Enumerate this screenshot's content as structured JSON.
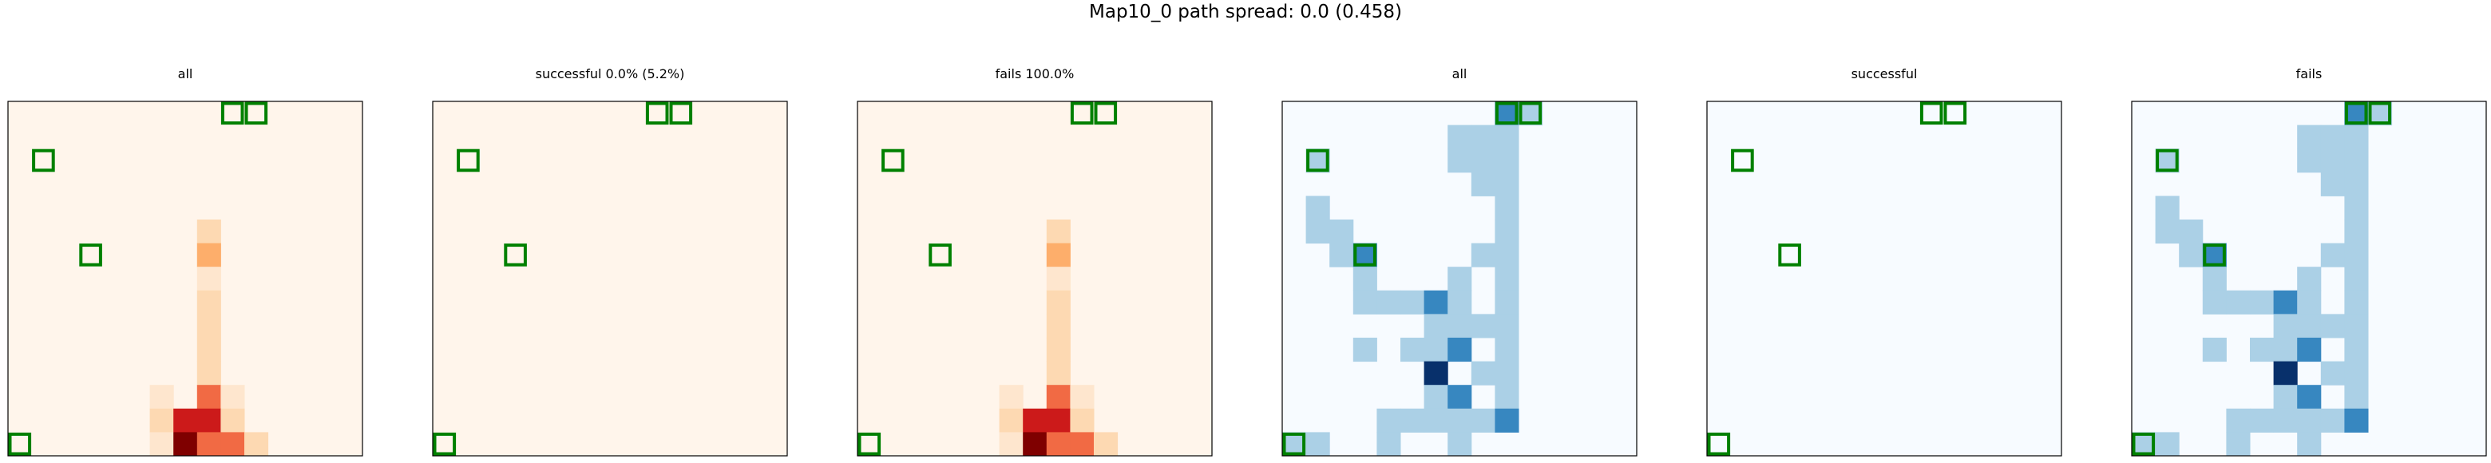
{
  "title": "Map10_0 path spread: 0.0 (0.458)",
  "colors": {
    "marker": "#008000",
    "frame": "#000000",
    "oranges": [
      "#fff5eb",
      "#fee6ce",
      "#fdd9b2",
      "#fdae6b",
      "#f16a44",
      "#cc1a1a",
      "#7f0000"
    ],
    "blues": [
      "#f7fbff",
      "#abd0e6",
      "#3787c0",
      "#08306b"
    ]
  },
  "chart_data": [
    {
      "type": "heatmap",
      "title": "all",
      "colormap": "oranges",
      "rows": 15,
      "cols": 15,
      "cells": [
        {
          "row": 5,
          "col": 8,
          "level": 2
        },
        {
          "row": 6,
          "col": 8,
          "level": 3
        },
        {
          "row": 7,
          "col": 8,
          "level": 1
        },
        {
          "row": 8,
          "col": 8,
          "level": 2
        },
        {
          "row": 9,
          "col": 8,
          "level": 2
        },
        {
          "row": 10,
          "col": 8,
          "level": 2
        },
        {
          "row": 11,
          "col": 8,
          "level": 2
        },
        {
          "row": 12,
          "col": 6,
          "level": 1
        },
        {
          "row": 12,
          "col": 8,
          "level": 4
        },
        {
          "row": 12,
          "col": 9,
          "level": 1
        },
        {
          "row": 13,
          "col": 6,
          "level": 2
        },
        {
          "row": 13,
          "col": 7,
          "level": 5
        },
        {
          "row": 13,
          "col": 8,
          "level": 5
        },
        {
          "row": 13,
          "col": 9,
          "level": 2
        },
        {
          "row": 14,
          "col": 6,
          "level": 1
        },
        {
          "row": 14,
          "col": 7,
          "level": 6
        },
        {
          "row": 14,
          "col": 8,
          "level": 4
        },
        {
          "row": 14,
          "col": 9,
          "level": 4
        },
        {
          "row": 14,
          "col": 10,
          "level": 2
        }
      ],
      "markers": [
        [
          0,
          9
        ],
        [
          0,
          10
        ],
        [
          2,
          1
        ],
        [
          6,
          3
        ],
        [
          14,
          0
        ]
      ]
    },
    {
      "type": "heatmap",
      "title": "successful 0.0% (5.2%)",
      "colormap": "oranges",
      "rows": 15,
      "cols": 15,
      "cells": [],
      "markers": [
        [
          0,
          9
        ],
        [
          0,
          10
        ],
        [
          2,
          1
        ],
        [
          6,
          3
        ],
        [
          14,
          0
        ]
      ]
    },
    {
      "type": "heatmap",
      "title": "fails 100.0%",
      "colormap": "oranges",
      "rows": 15,
      "cols": 15,
      "cells": [
        {
          "row": 5,
          "col": 8,
          "level": 2
        },
        {
          "row": 6,
          "col": 8,
          "level": 3
        },
        {
          "row": 7,
          "col": 8,
          "level": 1
        },
        {
          "row": 8,
          "col": 8,
          "level": 2
        },
        {
          "row": 9,
          "col": 8,
          "level": 2
        },
        {
          "row": 10,
          "col": 8,
          "level": 2
        },
        {
          "row": 11,
          "col": 8,
          "level": 2
        },
        {
          "row": 12,
          "col": 6,
          "level": 1
        },
        {
          "row": 12,
          "col": 8,
          "level": 4
        },
        {
          "row": 12,
          "col": 9,
          "level": 1
        },
        {
          "row": 13,
          "col": 6,
          "level": 2
        },
        {
          "row": 13,
          "col": 7,
          "level": 5
        },
        {
          "row": 13,
          "col": 8,
          "level": 5
        },
        {
          "row": 13,
          "col": 9,
          "level": 2
        },
        {
          "row": 14,
          "col": 6,
          "level": 1
        },
        {
          "row": 14,
          "col": 7,
          "level": 6
        },
        {
          "row": 14,
          "col": 8,
          "level": 4
        },
        {
          "row": 14,
          "col": 9,
          "level": 4
        },
        {
          "row": 14,
          "col": 10,
          "level": 2
        }
      ],
      "markers": [
        [
          0,
          9
        ],
        [
          0,
          10
        ],
        [
          2,
          1
        ],
        [
          6,
          3
        ],
        [
          14,
          0
        ]
      ]
    },
    {
      "type": "heatmap",
      "title": "all",
      "colormap": "blues",
      "rows": 15,
      "cols": 15,
      "cells": [
        {
          "row": 0,
          "col": 9,
          "level": 2
        },
        {
          "row": 0,
          "col": 10,
          "level": 1
        },
        {
          "row": 1,
          "col": 7,
          "level": 1
        },
        {
          "row": 1,
          "col": 8,
          "level": 1
        },
        {
          "row": 1,
          "col": 9,
          "level": 1
        },
        {
          "row": 2,
          "col": 1,
          "level": 1
        },
        {
          "row": 2,
          "col": 7,
          "level": 1
        },
        {
          "row": 2,
          "col": 8,
          "level": 1
        },
        {
          "row": 2,
          "col": 9,
          "level": 1
        },
        {
          "row": 3,
          "col": 8,
          "level": 1
        },
        {
          "row": 3,
          "col": 9,
          "level": 1
        },
        {
          "row": 4,
          "col": 1,
          "level": 1
        },
        {
          "row": 4,
          "col": 9,
          "level": 1
        },
        {
          "row": 5,
          "col": 1,
          "level": 1
        },
        {
          "row": 5,
          "col": 2,
          "level": 1
        },
        {
          "row": 5,
          "col": 9,
          "level": 1
        },
        {
          "row": 6,
          "col": 2,
          "level": 1
        },
        {
          "row": 6,
          "col": 3,
          "level": 2
        },
        {
          "row": 6,
          "col": 8,
          "level": 1
        },
        {
          "row": 6,
          "col": 9,
          "level": 1
        },
        {
          "row": 7,
          "col": 3,
          "level": 1
        },
        {
          "row": 7,
          "col": 7,
          "level": 1
        },
        {
          "row": 7,
          "col": 9,
          "level": 1
        },
        {
          "row": 8,
          "col": 3,
          "level": 1
        },
        {
          "row": 8,
          "col": 4,
          "level": 1
        },
        {
          "row": 8,
          "col": 5,
          "level": 1
        },
        {
          "row": 8,
          "col": 6,
          "level": 2
        },
        {
          "row": 8,
          "col": 7,
          "level": 1
        },
        {
          "row": 8,
          "col": 9,
          "level": 1
        },
        {
          "row": 9,
          "col": 6,
          "level": 1
        },
        {
          "row": 9,
          "col": 7,
          "level": 1
        },
        {
          "row": 9,
          "col": 8,
          "level": 1
        },
        {
          "row": 9,
          "col": 9,
          "level": 1
        },
        {
          "row": 10,
          "col": 3,
          "level": 1
        },
        {
          "row": 10,
          "col": 5,
          "level": 1
        },
        {
          "row": 10,
          "col": 6,
          "level": 1
        },
        {
          "row": 10,
          "col": 7,
          "level": 2
        },
        {
          "row": 10,
          "col": 9,
          "level": 1
        },
        {
          "row": 11,
          "col": 6,
          "level": 3
        },
        {
          "row": 11,
          "col": 8,
          "level": 1
        },
        {
          "row": 11,
          "col": 9,
          "level": 1
        },
        {
          "row": 12,
          "col": 6,
          "level": 1
        },
        {
          "row": 12,
          "col": 7,
          "level": 2
        },
        {
          "row": 12,
          "col": 9,
          "level": 1
        },
        {
          "row": 13,
          "col": 4,
          "level": 1
        },
        {
          "row": 13,
          "col": 5,
          "level": 1
        },
        {
          "row": 13,
          "col": 6,
          "level": 1
        },
        {
          "row": 13,
          "col": 7,
          "level": 1
        },
        {
          "row": 13,
          "col": 8,
          "level": 1
        },
        {
          "row": 13,
          "col": 9,
          "level": 2
        },
        {
          "row": 14,
          "col": 0,
          "level": 1
        },
        {
          "row": 14,
          "col": 1,
          "level": 1
        },
        {
          "row": 14,
          "col": 4,
          "level": 1
        },
        {
          "row": 14,
          "col": 7,
          "level": 1
        }
      ],
      "markers": [
        [
          0,
          9
        ],
        [
          0,
          10
        ],
        [
          2,
          1
        ],
        [
          6,
          3
        ],
        [
          14,
          0
        ]
      ]
    },
    {
      "type": "heatmap",
      "title": "successful",
      "colormap": "blues",
      "rows": 15,
      "cols": 15,
      "cells": [],
      "markers": [
        [
          0,
          9
        ],
        [
          0,
          10
        ],
        [
          2,
          1
        ],
        [
          6,
          3
        ],
        [
          14,
          0
        ]
      ]
    },
    {
      "type": "heatmap",
      "title": "fails",
      "colormap": "blues",
      "rows": 15,
      "cols": 15,
      "cells": [
        {
          "row": 0,
          "col": 9,
          "level": 2
        },
        {
          "row": 0,
          "col": 10,
          "level": 1
        },
        {
          "row": 1,
          "col": 7,
          "level": 1
        },
        {
          "row": 1,
          "col": 8,
          "level": 1
        },
        {
          "row": 1,
          "col": 9,
          "level": 1
        },
        {
          "row": 2,
          "col": 1,
          "level": 1
        },
        {
          "row": 2,
          "col": 7,
          "level": 1
        },
        {
          "row": 2,
          "col": 8,
          "level": 1
        },
        {
          "row": 2,
          "col": 9,
          "level": 1
        },
        {
          "row": 3,
          "col": 8,
          "level": 1
        },
        {
          "row": 3,
          "col": 9,
          "level": 1
        },
        {
          "row": 4,
          "col": 1,
          "level": 1
        },
        {
          "row": 4,
          "col": 9,
          "level": 1
        },
        {
          "row": 5,
          "col": 1,
          "level": 1
        },
        {
          "row": 5,
          "col": 2,
          "level": 1
        },
        {
          "row": 5,
          "col": 9,
          "level": 1
        },
        {
          "row": 6,
          "col": 2,
          "level": 1
        },
        {
          "row": 6,
          "col": 3,
          "level": 2
        },
        {
          "row": 6,
          "col": 8,
          "level": 1
        },
        {
          "row": 6,
          "col": 9,
          "level": 1
        },
        {
          "row": 7,
          "col": 3,
          "level": 1
        },
        {
          "row": 7,
          "col": 7,
          "level": 1
        },
        {
          "row": 7,
          "col": 9,
          "level": 1
        },
        {
          "row": 8,
          "col": 3,
          "level": 1
        },
        {
          "row": 8,
          "col": 4,
          "level": 1
        },
        {
          "row": 8,
          "col": 5,
          "level": 1
        },
        {
          "row": 8,
          "col": 6,
          "level": 2
        },
        {
          "row": 8,
          "col": 7,
          "level": 1
        },
        {
          "row": 8,
          "col": 9,
          "level": 1
        },
        {
          "row": 9,
          "col": 6,
          "level": 1
        },
        {
          "row": 9,
          "col": 7,
          "level": 1
        },
        {
          "row": 9,
          "col": 8,
          "level": 1
        },
        {
          "row": 9,
          "col": 9,
          "level": 1
        },
        {
          "row": 10,
          "col": 3,
          "level": 1
        },
        {
          "row": 10,
          "col": 5,
          "level": 1
        },
        {
          "row": 10,
          "col": 6,
          "level": 1
        },
        {
          "row": 10,
          "col": 7,
          "level": 2
        },
        {
          "row": 10,
          "col": 9,
          "level": 1
        },
        {
          "row": 11,
          "col": 6,
          "level": 3
        },
        {
          "row": 11,
          "col": 8,
          "level": 1
        },
        {
          "row": 11,
          "col": 9,
          "level": 1
        },
        {
          "row": 12,
          "col": 6,
          "level": 1
        },
        {
          "row": 12,
          "col": 7,
          "level": 2
        },
        {
          "row": 12,
          "col": 9,
          "level": 1
        },
        {
          "row": 13,
          "col": 4,
          "level": 1
        },
        {
          "row": 13,
          "col": 5,
          "level": 1
        },
        {
          "row": 13,
          "col": 6,
          "level": 1
        },
        {
          "row": 13,
          "col": 7,
          "level": 1
        },
        {
          "row": 13,
          "col": 8,
          "level": 1
        },
        {
          "row": 13,
          "col": 9,
          "level": 2
        },
        {
          "row": 14,
          "col": 0,
          "level": 1
        },
        {
          "row": 14,
          "col": 1,
          "level": 1
        },
        {
          "row": 14,
          "col": 4,
          "level": 1
        },
        {
          "row": 14,
          "col": 7,
          "level": 1
        }
      ],
      "markers": [
        [
          0,
          9
        ],
        [
          0,
          10
        ],
        [
          2,
          1
        ],
        [
          6,
          3
        ],
        [
          14,
          0
        ]
      ]
    }
  ]
}
